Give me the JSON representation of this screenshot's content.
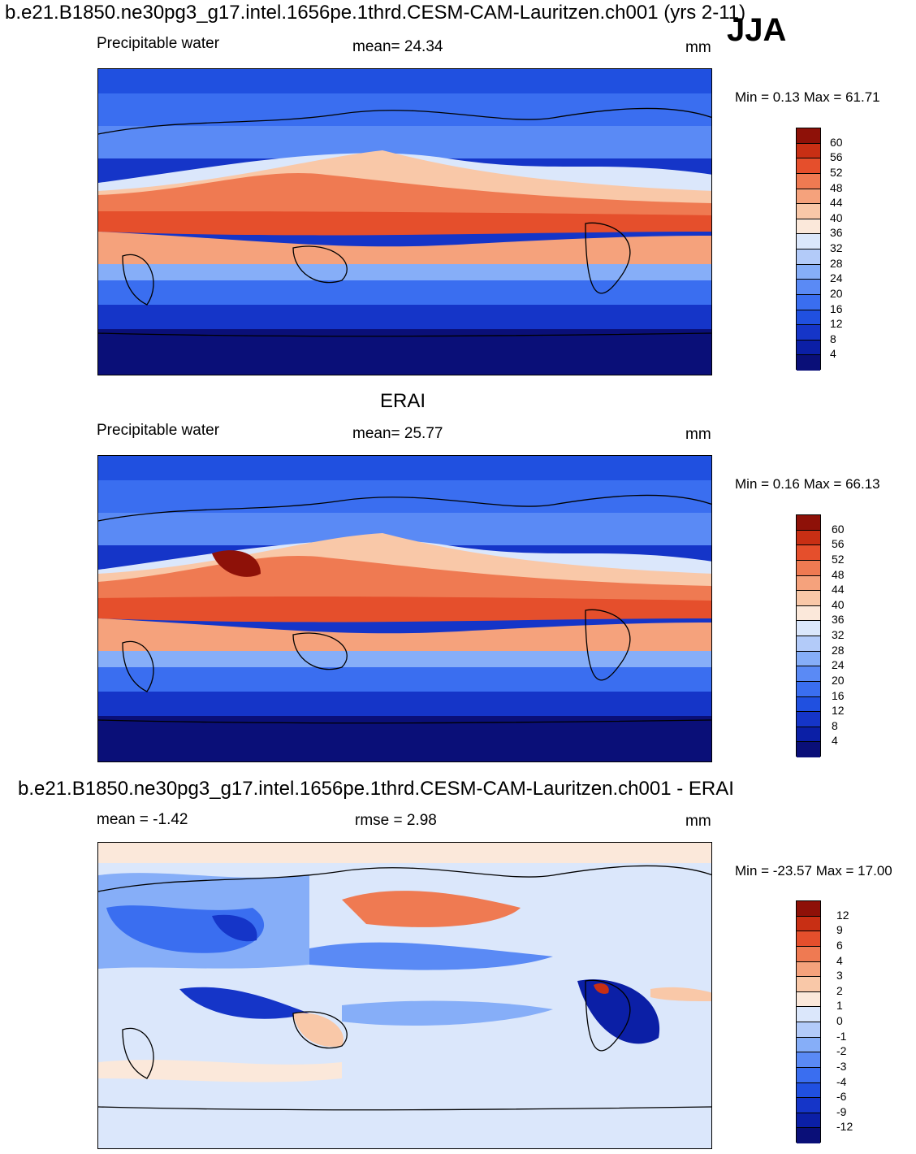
{
  "header": {
    "title": "b.e21.B1850.ne30pg3_g17.intel.1656pe.1thrd.CESM-CAM-Lauritzen.ch001 (yrs 2-11)",
    "season": "JJA"
  },
  "panels": [
    {
      "title": "",
      "left_label": "Precipitable water",
      "center_label": "mean=  24.34",
      "right_label": "mm",
      "minmax": "Min =    0.13 Max =  61.71",
      "ticks": [
        "60",
        "56",
        "52",
        "48",
        "44",
        "40",
        "36",
        "32",
        "28",
        "24",
        "20",
        "16",
        "12",
        "8",
        "4"
      ]
    },
    {
      "title": "ERAI",
      "left_label": "Precipitable water",
      "center_label": "mean=  25.77",
      "right_label": "mm",
      "minmax": "Min =    0.16 Max =  66.13",
      "ticks": [
        "60",
        "56",
        "52",
        "48",
        "44",
        "40",
        "36",
        "32",
        "28",
        "24",
        "20",
        "16",
        "12",
        "8",
        "4"
      ]
    },
    {
      "title": "b.e21.B1850.ne30pg3_g17.intel.1656pe.1thrd.CESM-CAM-Lauritzen.ch001 - ERAI",
      "left_label": "mean =  -1.42",
      "center_label": "rmse =    2.98",
      "right_label": "mm",
      "minmax": "Min = -23.57 Max =  17.00",
      "ticks": [
        "12",
        "9",
        "6",
        "4",
        "3",
        "2",
        "1",
        "0",
        "-1",
        "-2",
        "-3",
        "-4",
        "-6",
        "-9",
        "-12"
      ]
    }
  ],
  "colors": {
    "scale": [
      "#0a0f78",
      "#0b1fa6",
      "#1535c8",
      "#2050e0",
      "#3a6ef0",
      "#5a8af5",
      "#86aef8",
      "#b3cbf9",
      "#dbe7fb",
      "#fbe8da",
      "#f9c8a8",
      "#f5a27c",
      "#ef7a52",
      "#e54f2c",
      "#c82f14",
      "#8e1108"
    ]
  }
}
